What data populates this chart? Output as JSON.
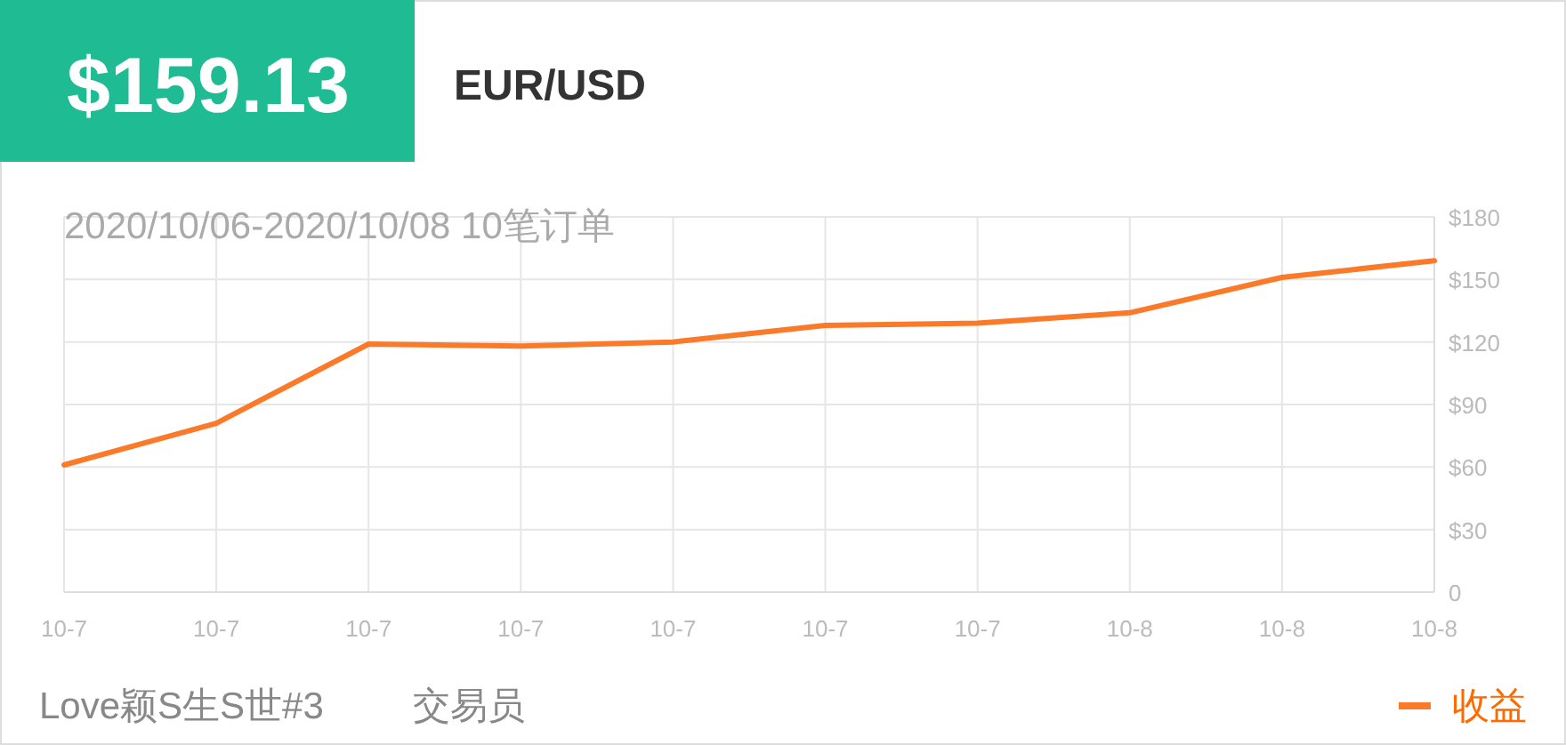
{
  "chart_data": {
    "type": "line",
    "title": "$159.13",
    "subtitle": "EUR/USD",
    "categories": [
      "10-7",
      "10-7",
      "10-7",
      "10-7",
      "10-7",
      "10-7",
      "10-7",
      "10-8",
      "10-8",
      "10-8"
    ],
    "series": [
      {
        "name": "收益",
        "color": "#fa7a2a",
        "values": [
          61,
          81,
          119,
          118,
          120,
          128,
          129,
          134,
          151,
          159
        ]
      }
    ],
    "ylim": [
      0,
      180
    ],
    "yticks": [
      {
        "value": 0,
        "label": "0"
      },
      {
        "value": 30,
        "label": "$30"
      },
      {
        "value": 60,
        "label": "$60"
      },
      {
        "value": 90,
        "label": "$90"
      },
      {
        "value": 120,
        "label": "$120"
      },
      {
        "value": 150,
        "label": "$150"
      },
      {
        "value": 180,
        "label": "$180"
      }
    ],
    "grid": true,
    "legend": "bottom right",
    "annotations": [
      "2020/10/06-2020/10/08 10笔订单",
      "Love颖S生S世#3",
      "交易员"
    ]
  }
}
